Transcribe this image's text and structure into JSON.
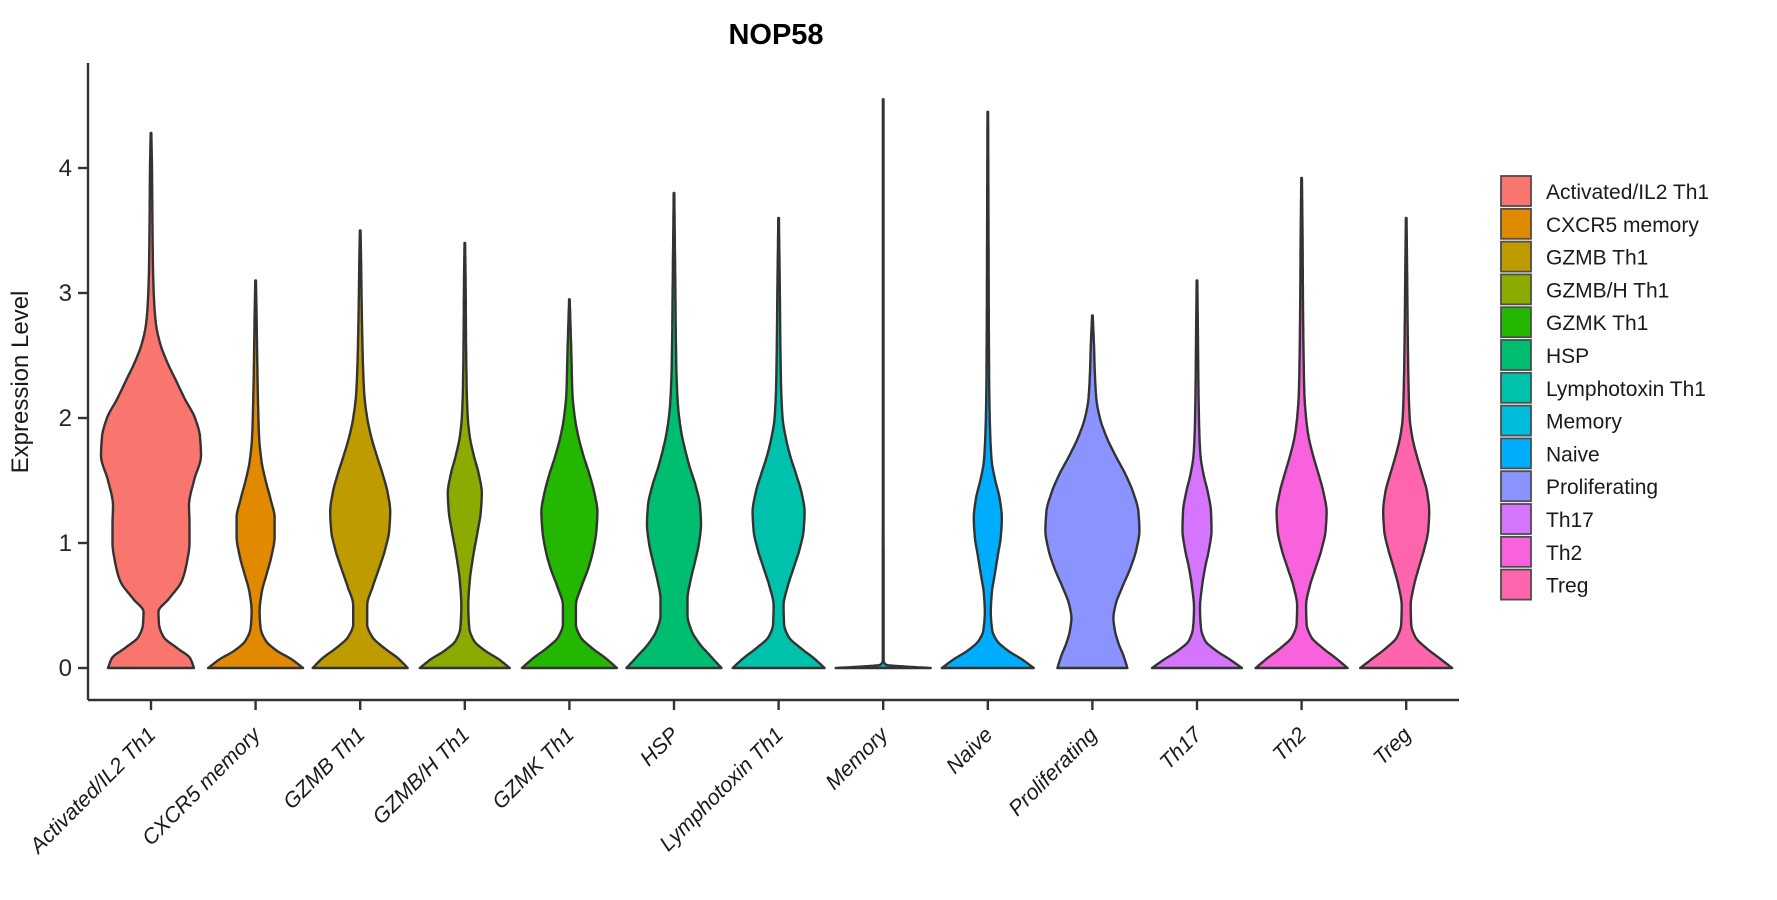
{
  "chart_data": {
    "type": "violin",
    "title": "NOP58",
    "xlabel": "",
    "ylabel": "Expression Level",
    "yticks": [
      0,
      1,
      2,
      3,
      4
    ],
    "ylim": [
      0,
      4.8
    ],
    "grid": false,
    "legend_position": "right",
    "outline_color": "#333333",
    "axis_color": "#333333",
    "categories": [
      "Activated/IL2 Th1",
      "CXCR5 memory",
      "GZMB Th1",
      "GZMB/H Th1",
      "GZMK Th1",
      "HSP",
      "Lymphotoxin Th1",
      "Memory",
      "Naive",
      "Proliferating",
      "Th17",
      "Th2",
      "Treg"
    ],
    "colors": [
      "#F8766D",
      "#E18A00",
      "#BE9C00",
      "#8CAB00",
      "#24B700",
      "#00BE70",
      "#00C1AB",
      "#00BBDA",
      "#00ACFC",
      "#8B93FF",
      "#D575FE",
      "#F962DD",
      "#FF65AC"
    ],
    "series": [
      {
        "name": "Activated/IL2 Th1",
        "color": "#F8766D",
        "max_expression": 4.28,
        "density_profile": [
          [
            0,
            0.86
          ],
          [
            0.08,
            0.78
          ],
          [
            0.16,
            0.52
          ],
          [
            0.25,
            0.25
          ],
          [
            0.35,
            0.16
          ],
          [
            0.45,
            0.15
          ],
          [
            0.55,
            0.35
          ],
          [
            0.7,
            0.62
          ],
          [
            0.85,
            0.72
          ],
          [
            1.0,
            0.77
          ],
          [
            1.15,
            0.77
          ],
          [
            1.3,
            0.76
          ],
          [
            1.5,
            0.86
          ],
          [
            1.7,
            1.0
          ],
          [
            1.85,
            0.98
          ],
          [
            2.0,
            0.88
          ],
          [
            2.15,
            0.68
          ],
          [
            2.3,
            0.5
          ],
          [
            2.45,
            0.32
          ],
          [
            2.6,
            0.18
          ],
          [
            2.75,
            0.1
          ],
          [
            2.95,
            0.06
          ],
          [
            3.2,
            0.04
          ],
          [
            3.6,
            0.028
          ],
          [
            4.0,
            0.02
          ],
          [
            4.28,
            0.006
          ]
        ]
      },
      {
        "name": "CXCR5 memory",
        "color": "#E18A00",
        "max_expression": 3.1,
        "density_profile": [
          [
            0,
            0.95
          ],
          [
            0.07,
            0.72
          ],
          [
            0.14,
            0.42
          ],
          [
            0.22,
            0.2
          ],
          [
            0.32,
            0.1
          ],
          [
            0.45,
            0.08
          ],
          [
            0.6,
            0.12
          ],
          [
            0.75,
            0.22
          ],
          [
            0.9,
            0.32
          ],
          [
            1.05,
            0.38
          ],
          [
            1.2,
            0.38
          ],
          [
            1.35,
            0.3
          ],
          [
            1.5,
            0.2
          ],
          [
            1.65,
            0.12
          ],
          [
            1.85,
            0.07
          ],
          [
            2.1,
            0.05
          ],
          [
            2.4,
            0.035
          ],
          [
            2.8,
            0.02
          ],
          [
            3.1,
            0.006
          ]
        ]
      },
      {
        "name": "GZMB Th1",
        "color": "#BE9C00",
        "max_expression": 3.5,
        "density_profile": [
          [
            0,
            0.95
          ],
          [
            0.08,
            0.75
          ],
          [
            0.16,
            0.48
          ],
          [
            0.25,
            0.24
          ],
          [
            0.35,
            0.14
          ],
          [
            0.5,
            0.14
          ],
          [
            0.65,
            0.25
          ],
          [
            0.8,
            0.38
          ],
          [
            0.95,
            0.5
          ],
          [
            1.1,
            0.58
          ],
          [
            1.25,
            0.6
          ],
          [
            1.4,
            0.55
          ],
          [
            1.55,
            0.45
          ],
          [
            1.7,
            0.33
          ],
          [
            1.85,
            0.22
          ],
          [
            2.0,
            0.14
          ],
          [
            2.2,
            0.08
          ],
          [
            2.5,
            0.05
          ],
          [
            2.9,
            0.03
          ],
          [
            3.2,
            0.02
          ],
          [
            3.5,
            0.006
          ]
        ]
      },
      {
        "name": "GZMB/H Th1",
        "color": "#8CAB00",
        "max_expression": 3.4,
        "density_profile": [
          [
            0,
            0.9
          ],
          [
            0.07,
            0.68
          ],
          [
            0.14,
            0.4
          ],
          [
            0.22,
            0.18
          ],
          [
            0.32,
            0.09
          ],
          [
            0.5,
            0.07
          ],
          [
            0.7,
            0.1
          ],
          [
            0.9,
            0.17
          ],
          [
            1.1,
            0.26
          ],
          [
            1.25,
            0.32
          ],
          [
            1.4,
            0.34
          ],
          [
            1.55,
            0.28
          ],
          [
            1.7,
            0.18
          ],
          [
            1.85,
            0.1
          ],
          [
            2.0,
            0.06
          ],
          [
            2.2,
            0.04
          ],
          [
            2.6,
            0.025
          ],
          [
            3.0,
            0.018
          ],
          [
            3.4,
            0.006
          ]
        ]
      },
      {
        "name": "GZMK Th1",
        "color": "#24B700",
        "max_expression": 2.95,
        "density_profile": [
          [
            0,
            0.95
          ],
          [
            0.08,
            0.72
          ],
          [
            0.16,
            0.45
          ],
          [
            0.25,
            0.22
          ],
          [
            0.35,
            0.13
          ],
          [
            0.5,
            0.13
          ],
          [
            0.65,
            0.24
          ],
          [
            0.8,
            0.38
          ],
          [
            0.95,
            0.48
          ],
          [
            1.1,
            0.54
          ],
          [
            1.25,
            0.56
          ],
          [
            1.4,
            0.5
          ],
          [
            1.55,
            0.4
          ],
          [
            1.7,
            0.28
          ],
          [
            1.85,
            0.18
          ],
          [
            2.0,
            0.11
          ],
          [
            2.2,
            0.06
          ],
          [
            2.5,
            0.04
          ],
          [
            2.95,
            0.006
          ]
        ]
      },
      {
        "name": "HSP",
        "color": "#00BE70",
        "max_expression": 3.8,
        "density_profile": [
          [
            0,
            0.95
          ],
          [
            0.1,
            0.72
          ],
          [
            0.2,
            0.5
          ],
          [
            0.3,
            0.35
          ],
          [
            0.42,
            0.27
          ],
          [
            0.55,
            0.27
          ],
          [
            0.7,
            0.33
          ],
          [
            0.85,
            0.42
          ],
          [
            1.0,
            0.5
          ],
          [
            1.15,
            0.54
          ],
          [
            1.3,
            0.52
          ],
          [
            1.45,
            0.44
          ],
          [
            1.6,
            0.32
          ],
          [
            1.75,
            0.22
          ],
          [
            1.9,
            0.14
          ],
          [
            2.1,
            0.08
          ],
          [
            2.35,
            0.05
          ],
          [
            2.7,
            0.035
          ],
          [
            3.1,
            0.025
          ],
          [
            3.8,
            0.006
          ]
        ]
      },
      {
        "name": "Lymphotoxin Th1",
        "color": "#00C1AB",
        "max_expression": 3.6,
        "density_profile": [
          [
            0,
            0.92
          ],
          [
            0.08,
            0.7
          ],
          [
            0.16,
            0.44
          ],
          [
            0.25,
            0.2
          ],
          [
            0.35,
            0.11
          ],
          [
            0.5,
            0.1
          ],
          [
            0.65,
            0.18
          ],
          [
            0.8,
            0.3
          ],
          [
            0.95,
            0.42
          ],
          [
            1.1,
            0.5
          ],
          [
            1.25,
            0.52
          ],
          [
            1.4,
            0.46
          ],
          [
            1.55,
            0.35
          ],
          [
            1.7,
            0.23
          ],
          [
            1.85,
            0.14
          ],
          [
            2.0,
            0.08
          ],
          [
            2.25,
            0.05
          ],
          [
            2.6,
            0.035
          ],
          [
            3.0,
            0.025
          ],
          [
            3.6,
            0.006
          ]
        ]
      },
      {
        "name": "Memory",
        "color": "#00BBDA",
        "max_expression": 4.55,
        "density_profile": [
          [
            0,
            0.95
          ],
          [
            0.01,
            0.5
          ],
          [
            0.025,
            0.06
          ],
          [
            0.06,
            0.008
          ],
          [
            1.0,
            0.007
          ],
          [
            4.55,
            0.006
          ]
        ]
      },
      {
        "name": "Naive",
        "color": "#00ACFC",
        "max_expression": 4.45,
        "density_profile": [
          [
            0,
            0.92
          ],
          [
            0.07,
            0.68
          ],
          [
            0.14,
            0.4
          ],
          [
            0.22,
            0.18
          ],
          [
            0.3,
            0.09
          ],
          [
            0.45,
            0.06
          ],
          [
            0.6,
            0.08
          ],
          [
            0.75,
            0.14
          ],
          [
            0.9,
            0.2
          ],
          [
            1.05,
            0.26
          ],
          [
            1.2,
            0.28
          ],
          [
            1.35,
            0.24
          ],
          [
            1.5,
            0.15
          ],
          [
            1.65,
            0.08
          ],
          [
            1.85,
            0.05
          ],
          [
            2.2,
            0.03
          ],
          [
            2.8,
            0.02
          ],
          [
            3.5,
            0.014
          ],
          [
            4.45,
            0.006
          ]
        ]
      },
      {
        "name": "Proliferating",
        "color": "#8B93FF",
        "max_expression": 2.82,
        "density_profile": [
          [
            0,
            0.7
          ],
          [
            0.1,
            0.62
          ],
          [
            0.2,
            0.52
          ],
          [
            0.3,
            0.45
          ],
          [
            0.4,
            0.42
          ],
          [
            0.5,
            0.46
          ],
          [
            0.65,
            0.6
          ],
          [
            0.8,
            0.76
          ],
          [
            0.95,
            0.88
          ],
          [
            1.1,
            0.94
          ],
          [
            1.25,
            0.92
          ],
          [
            1.4,
            0.82
          ],
          [
            1.55,
            0.66
          ],
          [
            1.7,
            0.46
          ],
          [
            1.85,
            0.28
          ],
          [
            2.0,
            0.15
          ],
          [
            2.15,
            0.08
          ],
          [
            2.35,
            0.05
          ],
          [
            2.6,
            0.03
          ],
          [
            2.82,
            0.006
          ]
        ]
      },
      {
        "name": "Th17",
        "color": "#D575FE",
        "max_expression": 3.1,
        "density_profile": [
          [
            0,
            0.9
          ],
          [
            0.07,
            0.65
          ],
          [
            0.14,
            0.38
          ],
          [
            0.22,
            0.16
          ],
          [
            0.32,
            0.08
          ],
          [
            0.48,
            0.06
          ],
          [
            0.65,
            0.1
          ],
          [
            0.8,
            0.16
          ],
          [
            0.95,
            0.24
          ],
          [
            1.1,
            0.29
          ],
          [
            1.25,
            0.28
          ],
          [
            1.4,
            0.22
          ],
          [
            1.55,
            0.13
          ],
          [
            1.7,
            0.07
          ],
          [
            1.9,
            0.045
          ],
          [
            2.2,
            0.03
          ],
          [
            2.6,
            0.02
          ],
          [
            3.1,
            0.006
          ]
        ]
      },
      {
        "name": "Th2",
        "color": "#F962DD",
        "max_expression": 3.92,
        "density_profile": [
          [
            0,
            0.92
          ],
          [
            0.08,
            0.68
          ],
          [
            0.16,
            0.42
          ],
          [
            0.25,
            0.19
          ],
          [
            0.35,
            0.1
          ],
          [
            0.5,
            0.09
          ],
          [
            0.65,
            0.16
          ],
          [
            0.8,
            0.28
          ],
          [
            0.95,
            0.4
          ],
          [
            1.1,
            0.48
          ],
          [
            1.25,
            0.5
          ],
          [
            1.4,
            0.44
          ],
          [
            1.55,
            0.34
          ],
          [
            1.7,
            0.23
          ],
          [
            1.85,
            0.14
          ],
          [
            2.0,
            0.09
          ],
          [
            2.2,
            0.055
          ],
          [
            2.5,
            0.04
          ],
          [
            2.9,
            0.028
          ],
          [
            3.4,
            0.02
          ],
          [
            3.92,
            0.006
          ]
        ]
      },
      {
        "name": "Treg",
        "color": "#FF65AC",
        "max_expression": 3.6,
        "density_profile": [
          [
            0,
            0.92
          ],
          [
            0.08,
            0.66
          ],
          [
            0.16,
            0.4
          ],
          [
            0.25,
            0.18
          ],
          [
            0.35,
            0.1
          ],
          [
            0.5,
            0.09
          ],
          [
            0.65,
            0.15
          ],
          [
            0.8,
            0.25
          ],
          [
            0.95,
            0.36
          ],
          [
            1.1,
            0.44
          ],
          [
            1.25,
            0.46
          ],
          [
            1.4,
            0.42
          ],
          [
            1.55,
            0.32
          ],
          [
            1.7,
            0.21
          ],
          [
            1.85,
            0.12
          ],
          [
            2.0,
            0.07
          ],
          [
            2.3,
            0.045
          ],
          [
            2.7,
            0.03
          ],
          [
            3.1,
            0.02
          ],
          [
            3.6,
            0.006
          ]
        ]
      }
    ]
  },
  "legend": {
    "items": [
      {
        "label": "Activated/IL2 Th1",
        "color": "#F8766D"
      },
      {
        "label": "CXCR5 memory",
        "color": "#E18A00"
      },
      {
        "label": "GZMB Th1",
        "color": "#BE9C00"
      },
      {
        "label": "GZMB/H Th1",
        "color": "#8CAB00"
      },
      {
        "label": "GZMK Th1",
        "color": "#24B700"
      },
      {
        "label": "HSP",
        "color": "#00BE70"
      },
      {
        "label": "Lymphotoxin Th1",
        "color": "#00C1AB"
      },
      {
        "label": "Memory",
        "color": "#00BBDA"
      },
      {
        "label": "Naive",
        "color": "#00ACFC"
      },
      {
        "label": "Proliferating",
        "color": "#8B93FF"
      },
      {
        "label": "Th17",
        "color": "#D575FE"
      },
      {
        "label": "Th2",
        "color": "#F962DD"
      },
      {
        "label": "Treg",
        "color": "#FF65AC"
      }
    ]
  }
}
